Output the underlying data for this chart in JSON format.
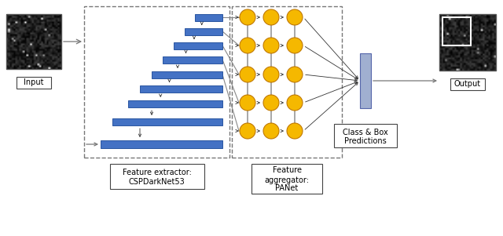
{
  "bg_color": "#ffffff",
  "input_label": "Input",
  "output_label": "Output",
  "fe_label_line1": "Feature extractor:",
  "fe_label_line2": "CSPDarkNet53",
  "fa_label_line1": "Feature",
  "fa_label_line2": "aggregator:",
  "fa_label_line3": "PANet",
  "pred_label_line1": "Class & Box",
  "pred_label_line2": "Predictions",
  "bar_color": "#4472c4",
  "bar_edge": "#2a55a0",
  "circle_color": "#f5b800",
  "circle_edge": "#c07800",
  "arrow_color": "#555555",
  "dashed_color": "#777777",
  "rect_edge": "#444444",
  "pred_rect_color": "#a0afd0",
  "pred_rect_edge": "#5566aa"
}
